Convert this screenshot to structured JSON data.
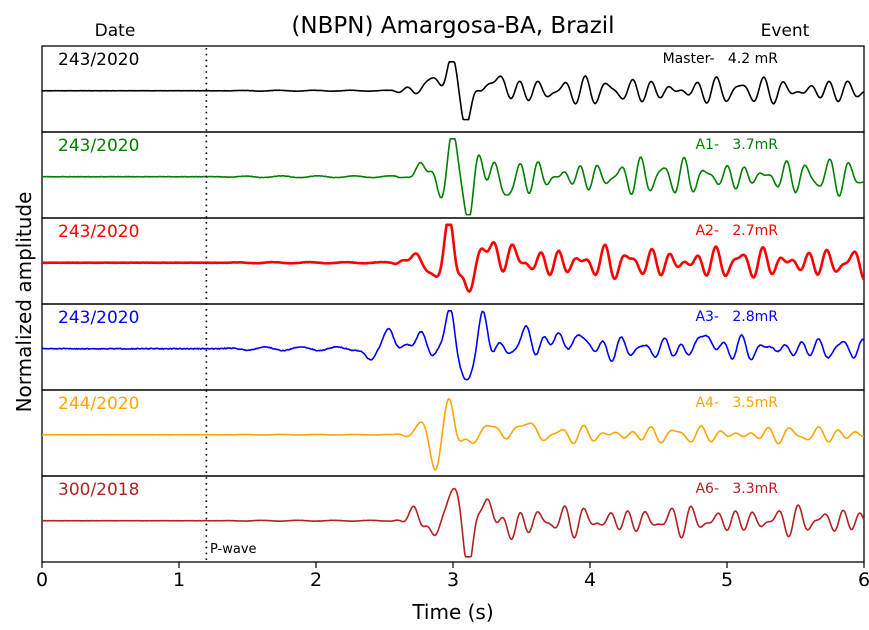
{
  "chart_data": {
    "type": "line",
    "title": "(NBPN) Amargosa-BA, Brazil",
    "xlabel": "Time (s)",
    "ylabel": "Normalized amplitude",
    "xlim": [
      0,
      6
    ],
    "xticks": [
      "0",
      "1",
      "2",
      "3",
      "4",
      "5",
      "6"
    ],
    "column_headers": {
      "left": "Date",
      "right": "Event"
    },
    "marker": {
      "label": "P-wave",
      "x": 1.2
    },
    "grid": false,
    "series": [
      {
        "date": "243/2020",
        "event": "Master-   4.2 mR",
        "color": "#000000",
        "width": 1.6,
        "amp": 0.32,
        "seed": 11,
        "pre": 0.008,
        "pulse": [
          [
            2.85,
            0.3,
            0.09
          ],
          [
            2.97,
            1.0,
            0.05
          ],
          [
            3.11,
            -1.0,
            0.05
          ],
          [
            3.3,
            0.4,
            0.08
          ]
        ],
        "coda": [
          [
            2.9,
            0.92,
            6.2
          ],
          [
            3.0,
            0.62,
            8.4
          ],
          [
            3.4,
            0.35,
            5.3
          ]
        ],
        "codaAmp": 0.3,
        "codaDecay": 0.02
      },
      {
        "date": "243/2020",
        "event": "A1-   3.7mR",
        "color": "#008000",
        "width": 1.6,
        "amp": 0.42,
        "seed": 23,
        "pre": 0.012,
        "pulse": [
          [
            2.78,
            0.45,
            0.05
          ],
          [
            2.88,
            -0.35,
            0.05
          ],
          [
            3.0,
            1.0,
            0.045
          ],
          [
            3.12,
            -1.0,
            0.05
          ],
          [
            3.22,
            0.62,
            0.05
          ],
          [
            3.38,
            -0.3,
            0.07
          ]
        ],
        "coda": [
          [
            2.9,
            0.9,
            6.6
          ],
          [
            3.1,
            0.5,
            9.3
          ],
          [
            3.5,
            0.4,
            5.8
          ]
        ],
        "codaAmp": 0.32,
        "codaDecay": 0.03
      },
      {
        "date": "243/2020",
        "event": "A2-   2.7mR",
        "color": "#ff0000",
        "width": 2.6,
        "amp": 0.42,
        "seed": 37,
        "pre": 0.008,
        "pulse": [
          [
            2.72,
            0.25,
            0.05
          ],
          [
            2.84,
            -0.4,
            0.05
          ],
          [
            2.98,
            1.0,
            0.045
          ],
          [
            3.11,
            -1.0,
            0.05
          ],
          [
            3.22,
            0.65,
            0.05
          ],
          [
            3.4,
            0.32,
            0.06
          ]
        ],
        "coda": [
          [
            2.8,
            0.8,
            6.1
          ],
          [
            3.2,
            0.6,
            8.7
          ],
          [
            3.6,
            0.3,
            5.0
          ]
        ],
        "codaAmp": 0.3,
        "codaDecay": 0.02
      },
      {
        "date": "243/2020",
        "event": "A3-   2.8mR",
        "color": "#0000ff",
        "width": 1.6,
        "amp": 0.42,
        "seed": 51,
        "pre": 0.025,
        "pulse": [
          [
            2.4,
            -0.35,
            0.05
          ],
          [
            2.53,
            0.6,
            0.05
          ],
          [
            2.75,
            0.4,
            0.05
          ],
          [
            2.98,
            1.0,
            0.045
          ],
          [
            3.1,
            -1.0,
            0.05
          ],
          [
            3.22,
            0.8,
            0.05
          ],
          [
            3.55,
            0.42,
            0.06
          ],
          [
            3.75,
            0.42,
            0.05
          ],
          [
            3.92,
            0.45,
            0.05
          ],
          [
            4.85,
            0.42,
            0.05
          ]
        ],
        "coda": [
          [
            2.7,
            0.7,
            6.9
          ],
          [
            3.1,
            0.5,
            9.0
          ],
          [
            3.5,
            0.4,
            5.6
          ]
        ],
        "codaAmp": 0.22,
        "codaDecay": 0.01
      },
      {
        "date": "244/2020",
        "event": "A4-   3.5mR",
        "color": "#ffa500",
        "width": 1.6,
        "amp": 0.4,
        "seed": 67,
        "pre": 0.004,
        "pulse": [
          [
            2.78,
            0.4,
            0.05
          ],
          [
            2.87,
            -1.0,
            0.05
          ],
          [
            2.98,
            1.0,
            0.05
          ],
          [
            3.1,
            -0.4,
            0.06
          ],
          [
            3.25,
            0.3,
            0.06
          ],
          [
            3.52,
            0.45,
            0.05
          ]
        ],
        "coda": [
          [
            2.6,
            0.6,
            5.9
          ],
          [
            3.0,
            0.5,
            8.1
          ],
          [
            3.5,
            0.4,
            4.7
          ]
        ],
        "codaAmp": 0.2,
        "codaDecay": 0.02
      },
      {
        "date": "300/2018",
        "event": "A6-   3.3mR",
        "color": "#b22222",
        "width": 1.6,
        "amp": 0.4,
        "seed": 83,
        "pre": 0.006,
        "pulse": [
          [
            2.72,
            0.3,
            0.05
          ],
          [
            2.86,
            -0.55,
            0.05
          ],
          [
            2.98,
            1.0,
            0.05
          ],
          [
            3.12,
            -1.0,
            0.05
          ],
          [
            3.25,
            0.65,
            0.05
          ],
          [
            3.42,
            -0.3,
            0.06
          ]
        ],
        "coda": [
          [
            2.7,
            0.8,
            6.4
          ],
          [
            3.1,
            0.6,
            8.9
          ],
          [
            3.5,
            0.4,
            5.2
          ]
        ],
        "codaAmp": 0.28,
        "codaDecay": 0.02
      }
    ]
  }
}
